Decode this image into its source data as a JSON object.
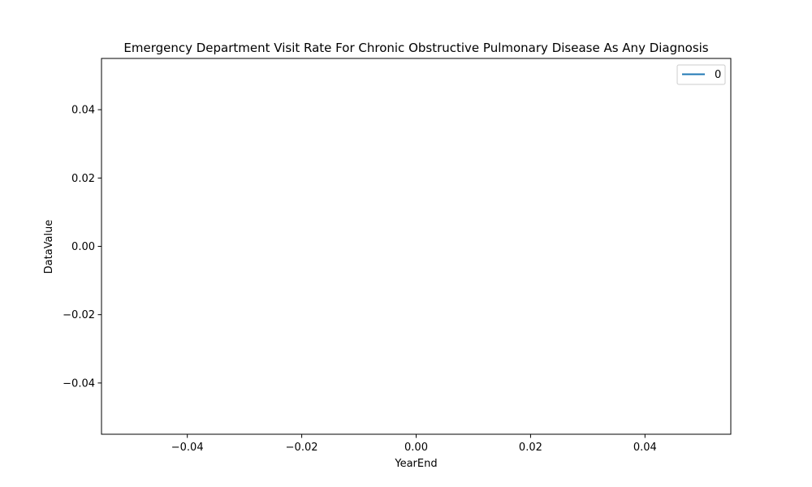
{
  "chart_data": {
    "type": "line",
    "title": "Emergency Department Visit Rate For Chronic Obstructive Pulmonary Disease As Any Diagnosis",
    "xlabel": "YearEnd",
    "ylabel": "DataValue",
    "xlim": [
      -0.055,
      0.055
    ],
    "ylim": [
      -0.055,
      0.055
    ],
    "x_ticks": [
      -0.04,
      -0.02,
      0.0,
      0.02,
      0.04
    ],
    "x_tick_labels": [
      "−0.04",
      "−0.02",
      "0.00",
      "0.02",
      "0.04"
    ],
    "y_ticks": [
      -0.04,
      -0.02,
      0.0,
      0.02,
      0.04
    ],
    "y_tick_labels": [
      "−0.04",
      "−0.02",
      "0.00",
      "0.02",
      "0.04"
    ],
    "grid": false,
    "legend_position": "top-right",
    "series": [
      {
        "name": "0",
        "color": "#1f77b4",
        "x": [],
        "y": []
      }
    ]
  }
}
